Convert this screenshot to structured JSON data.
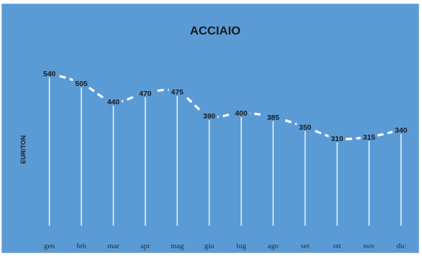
{
  "chart_data": {
    "type": "line",
    "title": "ACCIAIO",
    "xlabel": "",
    "ylabel": "EUR/TON",
    "categories": [
      "gen",
      "feb",
      "mar",
      "apr",
      "mag",
      "giu",
      "lug",
      "ago",
      "set",
      "ott",
      "nov",
      "dic"
    ],
    "series": [
      {
        "values": [
          540,
          505,
          440,
          470,
          475,
          390,
          400,
          385,
          350,
          310,
          315,
          340
        ]
      }
    ],
    "ylim": [
      0,
      650
    ],
    "grid": false,
    "legend": "none",
    "drop_lines": true,
    "line_style": "dashed",
    "colors": {
      "background": "#5b9bd5",
      "line": "#ffffff",
      "drop_line": "#e8f1fb",
      "text": "#1a1a1a"
    }
  }
}
